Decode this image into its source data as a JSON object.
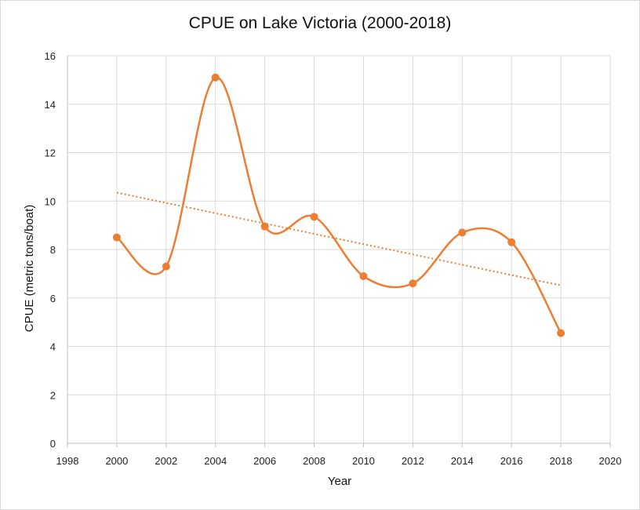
{
  "chart_data": {
    "type": "scatter",
    "title": "CPUE on Lake Victoria (2000-2018)",
    "xlabel": "Year",
    "ylabel": "CPUE (metric tons/boat)",
    "xlim": [
      1998,
      2020
    ],
    "ylim": [
      0,
      16
    ],
    "x_ticks": [
      1998,
      2000,
      2002,
      2004,
      2006,
      2008,
      2010,
      2012,
      2014,
      2016,
      2018,
      2020
    ],
    "y_ticks": [
      0,
      2,
      4,
      6,
      8,
      10,
      12,
      14,
      16
    ],
    "grid": true,
    "legend": "none",
    "smooth_line": true,
    "series": [
      {
        "x": [
          2000,
          2002,
          2004,
          2006,
          2008,
          2010,
          2012,
          2014,
          2016,
          2018
        ],
        "y": [
          8.5,
          7.3,
          15.1,
          8.95,
          9.35,
          6.9,
          6.6,
          8.7,
          8.3,
          4.55
        ],
        "color": "#ED7D31"
      }
    ],
    "trendline": {
      "type": "linear",
      "x": [
        2000,
        2018
      ],
      "y": [
        10.35,
        6.52
      ],
      "color": "#ED7D31",
      "style": "dotted"
    }
  }
}
